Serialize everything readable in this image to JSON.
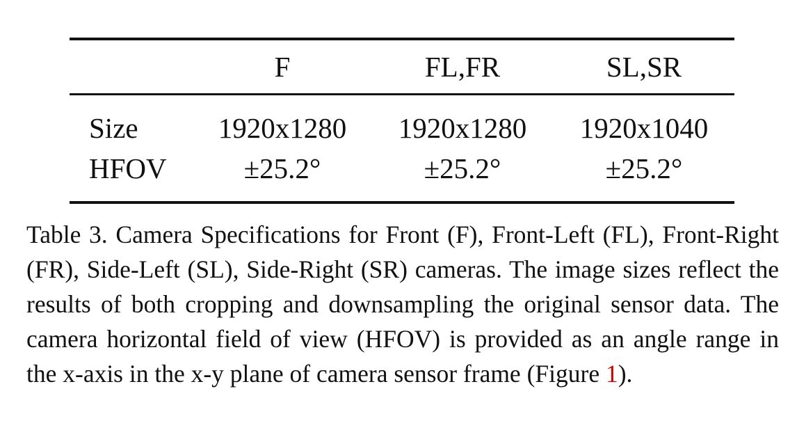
{
  "table": {
    "headers": [
      "",
      "F",
      "FL,FR",
      "SL,SR"
    ],
    "rows": [
      {
        "label": "Size",
        "values": [
          "1920x1280",
          "1920x1280",
          "1920x1040"
        ]
      },
      {
        "label": "HFOV",
        "values": [
          "±25.2°",
          "±25.2°",
          "±25.2°"
        ]
      }
    ]
  },
  "caption": {
    "text_before": "Table 3. Camera Specifications for Front (F), Front-Left (FL), Front-Right (FR), Side-Left (SL), Side-Right (SR) cameras. The image sizes reflect the results of both cropping and downsampling the original sensor data. The camera horizontal field of view (HFOV) is provided as an angle range in the x-axis in the x-y plane of camera sensor frame (Figure ",
    "figure_ref": "1",
    "text_after": ").",
    "ref_color": "#cc0000"
  }
}
